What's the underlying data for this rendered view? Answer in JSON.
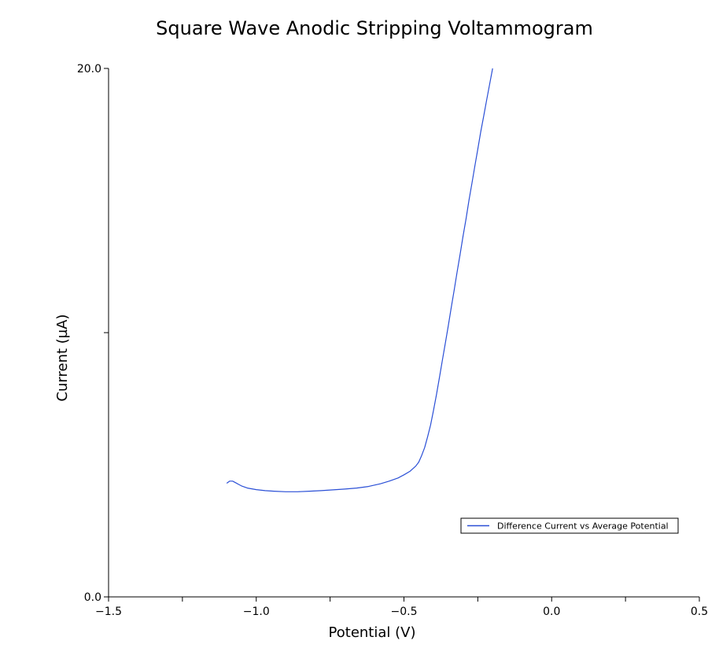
{
  "chart_data": {
    "type": "line",
    "title": "Square Wave Anodic Stripping Voltammogram",
    "xlabel": "Potential (V)",
    "ylabel": "Current (µA)",
    "xlim": [
      -1.5,
      0.5
    ],
    "ylim": [
      0.0,
      20.0
    ],
    "x_ticks": [
      -1.5,
      -1.25,
      -1.0,
      -0.75,
      -0.5,
      -0.25,
      0.0,
      0.25,
      0.5
    ],
    "x_tick_labels": [
      "−1.5",
      "",
      "−1.0",
      "",
      "−0.5",
      "",
      "0.0",
      "",
      "0.5"
    ],
    "y_ticks": [
      0.0,
      10.0,
      20.0
    ],
    "y_tick_labels": [
      "0.0",
      "",
      "20.0"
    ],
    "grid": false,
    "legend_position": "lower-right",
    "series": [
      {
        "name": "Difference Current vs Average Potential",
        "color": "#2a4fd6",
        "x": [
          -1.1,
          -1.09,
          -1.08,
          -1.07,
          -1.06,
          -1.05,
          -1.03,
          -1.0,
          -0.97,
          -0.94,
          -0.9,
          -0.86,
          -0.82,
          -0.78,
          -0.74,
          -0.7,
          -0.66,
          -0.62,
          -0.58,
          -0.55,
          -0.52,
          -0.5,
          -0.48,
          -0.46,
          -0.45,
          -0.44,
          -0.43,
          -0.42,
          -0.41,
          -0.4,
          -0.39,
          -0.38,
          -0.37,
          -0.36,
          -0.35,
          -0.34,
          -0.33,
          -0.32,
          -0.31,
          -0.3,
          -0.29,
          -0.28,
          -0.27,
          -0.26,
          -0.25,
          -0.24,
          -0.23,
          -0.22,
          -0.21,
          -0.2
        ],
        "y": [
          4.3,
          4.38,
          4.38,
          4.32,
          4.26,
          4.2,
          4.12,
          4.06,
          4.02,
          4.0,
          3.98,
          3.98,
          4.0,
          4.02,
          4.05,
          4.08,
          4.12,
          4.18,
          4.28,
          4.38,
          4.5,
          4.62,
          4.75,
          4.95,
          5.1,
          5.35,
          5.65,
          6.05,
          6.5,
          7.05,
          7.65,
          8.3,
          8.95,
          9.6,
          10.25,
          10.95,
          11.6,
          12.3,
          12.95,
          13.65,
          14.3,
          15.0,
          15.65,
          16.3,
          16.95,
          17.6,
          18.2,
          18.8,
          19.4,
          20.0
        ]
      }
    ]
  }
}
